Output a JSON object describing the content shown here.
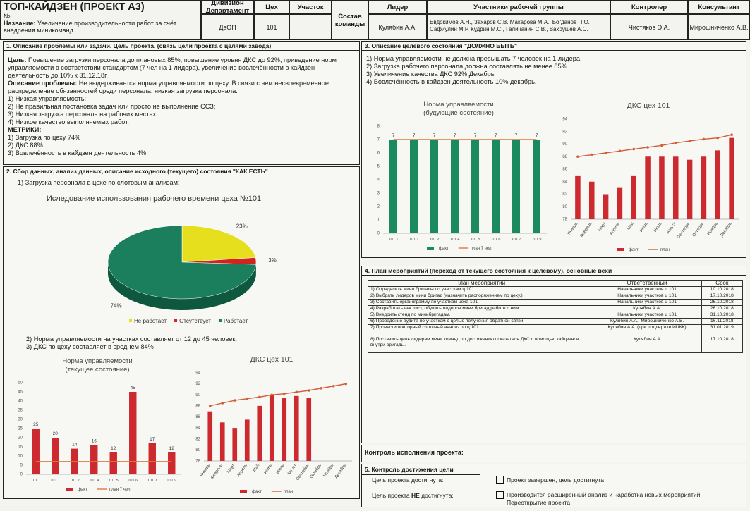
{
  "header": {
    "title": "ТОП-КАЙДЗЕН (ПРОЕКТ А3)",
    "number_label": "№",
    "name_label": "Название:",
    "name": "Увеличение производительности работ за счёт внедрения миникоманд.",
    "division_label": "Дивизион Департамент",
    "division": "ДвОП",
    "shop_label": "Цех",
    "shop": "101",
    "site_label": "Участок",
    "team_label": "Состав команды",
    "leader_label": "Лидер",
    "leader": "Кулябин А.А.",
    "members_label": "Участники рабочей группы",
    "members": [
      "Евдокимов А.Н., Захаров С.В. Макарова М.А., Богданов П.О.",
      "Сафиулин М.Р. Кудрин М.С., Галичанин С.В., Вахрушев А.С."
    ],
    "controller_label": "Контролер",
    "controller": "Чистяков Э.А.",
    "consultant_label": "Консультант",
    "consultant": "Мирошниченко А.В."
  },
  "section1": {
    "title": "1. Описание проблемы или задачи. Цель проекта. (связь цели проекта с целями завода)",
    "goal_label": "Цель:",
    "goal": "Повышение загрузки персонала до плановых 85%, повышение уровня ДКС до 92%, приведение норм управляемости в соответствии стандартом (7 чел на 1 лидера), увеличение вовлечённости в кайдзен деятельность до 10% к 31.12.18г.",
    "problem_label": "Описание проблемы:",
    "problem": "Не выдерживается норма управляемости по цеху. В связи с чем несвоевременное распределение обязанностей среди персонала, низкая загрузка персонала.",
    "items": [
      "1) Низкая управляемость;",
      "2) Не правильная постановка задач или просто не выполнение ССЗ;",
      "3) Низкая загрузка персонала на рабочих местах.",
      "4) Низкое качество выполняемых работ."
    ],
    "metrics_label": "МЕТРИКИ:",
    "metrics": [
      "1) Загрузка по цеху 74%",
      "2) ДКС 88%",
      "3) Вовлечённость в кайдзен деятельность 4%"
    ]
  },
  "section2": {
    "title": "2. Сбор данных, анализ данных, описание исходного (текущего) состояния \"КАК ЕСТЬ\"",
    "item1": "1) Загрузка персонала в цехе по слотовым анализам:",
    "pie": {
      "type": "pie",
      "title": "Иследование использования рабочего времени цеха №101",
      "categories": [
        "Не работает",
        "Отсутствует",
        "Работает"
      ],
      "values": [
        23,
        3,
        74
      ],
      "value_labels": [
        "23%",
        "3%",
        "74%"
      ],
      "colors": [
        "#e6df1e",
        "#d2231f",
        "#1b7f5e"
      ]
    },
    "item2": "2) Норма управляемости на участках составляет от 12 до 45 человек.",
    "item3": "3) ДКС по цеху составляет в среднем 84%",
    "norm_chart": {
      "type": "bar",
      "title": [
        "Норма управляемости",
        "(текущее состояние)"
      ],
      "categories": [
        "101.1",
        "101.1",
        "101.2",
        "101.4",
        "101.5",
        "101.6",
        "101.7",
        "101.9"
      ],
      "series": [
        {
          "name": "факт",
          "color": "#cc2a2f",
          "kind": "bar",
          "values": [
            25,
            20,
            14,
            16,
            12,
            45,
            17,
            12
          ]
        },
        {
          "name": "план 7 чел",
          "color": "#e0793a",
          "kind": "line",
          "values": [
            7,
            7,
            7,
            7,
            7,
            7,
            7,
            7
          ]
        }
      ],
      "data_labels": true,
      "ylim": [
        0,
        50
      ],
      "yticks": [
        0,
        5,
        10,
        15,
        20,
        25,
        30,
        35,
        40,
        45,
        50
      ],
      "grid": false
    },
    "dks_chart": {
      "type": "bar",
      "title": [
        "ДКС цех 101"
      ],
      "categories": [
        "Январь",
        "Февраль",
        "Март",
        "Апрель",
        "Май",
        "Июнь",
        "Июль",
        "Август",
        "Сентябрь",
        "Октябрь",
        "Ноябрь",
        "Декабрь"
      ],
      "rotate_labels": true,
      "series": [
        {
          "name": "факт",
          "color": "#cc2a2f",
          "kind": "bar",
          "values": [
            87,
            85,
            84,
            85.5,
            88,
            90,
            89.5,
            89.8,
            89.5,
            null,
            null,
            null
          ]
        },
        {
          "name": "план",
          "color": "#d0603a",
          "kind": "line",
          "markers": true,
          "values": [
            88,
            88.5,
            89,
            89.3,
            89.6,
            90,
            90.2,
            90.5,
            90.8,
            91.2,
            91.6,
            92
          ]
        }
      ],
      "data_labels": false,
      "ylim": [
        78,
        94
      ],
      "yticks": [
        78,
        80,
        82,
        84,
        86,
        88,
        90,
        92,
        94
      ],
      "grid": false
    }
  },
  "section3": {
    "title": "3. Описание целевого состояния \"ДОЛЖНО БЫТЬ\"",
    "items": [
      "1) Норма управляемости не должна превышать 7 человек на 1 лидера.",
      "2) Загрузка рабочего персонала должна составлять не менее 85%.",
      "3) Увеличение качества ДКС 92% Декабрь",
      "4) Вовлечённость в кайдзен деятельность 10% декабрь."
    ],
    "norm_chart": {
      "type": "bar",
      "title": [
        "Норма управляемости",
        "(будующие состояние)"
      ],
      "categories": [
        "101.1",
        "101.1",
        "101.2",
        "101.4",
        "101.5",
        "101.6",
        "101.7",
        "101.9"
      ],
      "series": [
        {
          "name": "факт",
          "color": "#1b8a5e",
          "kind": "bar",
          "values": [
            7,
            7,
            7,
            7,
            7,
            7,
            7,
            7
          ]
        },
        {
          "name": "план 7 чел",
          "color": "#e0793a",
          "kind": "line",
          "values": [
            7,
            7,
            7,
            7,
            7,
            7,
            7,
            7
          ]
        }
      ],
      "data_labels": true,
      "ylim": [
        0,
        8
      ],
      "yticks": [
        0,
        1,
        2,
        3,
        4,
        5,
        6,
        7,
        8
      ],
      "grid": false
    },
    "dks_chart": {
      "type": "bar",
      "title": [
        "ДКС цех 101"
      ],
      "categories": [
        "Январь",
        "Февраль",
        "Март",
        "Апрель",
        "Май",
        "Июнь",
        "Июль",
        "Август",
        "Сентябрь",
        "Октябрь",
        "Ноябрь",
        "Декабрь"
      ],
      "rotate_labels": true,
      "series": [
        {
          "name": "факт",
          "color": "#cc2a2f",
          "kind": "bar",
          "values": [
            85,
            84,
            82,
            83,
            85,
            88,
            88,
            88,
            87.5,
            88,
            89,
            91
          ]
        },
        {
          "name": "план",
          "color": "#d0603a",
          "kind": "line",
          "markers": true,
          "values": [
            88,
            88.3,
            88.6,
            88.9,
            89.2,
            89.5,
            89.8,
            90.2,
            90.5,
            90.8,
            91,
            91.5
          ]
        }
      ],
      "data_labels": false,
      "ylim": [
        78,
        94
      ],
      "yticks": [
        78,
        80,
        82,
        84,
        86,
        88,
        90,
        92,
        94
      ],
      "grid": false
    }
  },
  "section4": {
    "title": "4. План мероприятий (переход от текущего состояния к целевому), основные вехи",
    "headers": [
      "План мероприятий",
      "Ответственный",
      "Срок"
    ],
    "rows": [
      [
        "1) Определить мини бригады по участкам ц 101",
        "Начальники участков ц 101",
        "10.10.2018"
      ],
      [
        "2) Выбрать лидеров мини бригад (назначить распоряжением по цеху.)",
        "Начальники участков ц 101",
        "17.10.2018"
      ],
      [
        "3) Составить оргаинграмму по участкам цеха 101.",
        "Начальники участков ц 101",
        "26.10.2018"
      ],
      [
        "4) Разработать чек лист, обучить лидеров мини бригад работе с ним.",
        "Кулябин А.А.",
        "26.10.2018"
      ],
      [
        "5) Внедрить стенд по минибригадам.",
        "Начальники участков ц 101",
        "31.10.2018"
      ],
      [
        "6) Проведение аудита по участкам с целью получения обратной связи",
        "Кулябин А.А.. Мирошниченко А.В.",
        "16.11.2018"
      ],
      [
        "7) Провести повторный слотовый анализ по ц 101",
        "Кулябин А.А. (при поддержке ИЦКК)",
        "31.01.2019"
      ],
      [
        "8) Поставить цель лидерам мини команд по достижению показателя ДКС с помощью кайдзенов внутри бригады.",
        "Кулябин А.А",
        "17.10.2018"
      ]
    ]
  },
  "control": {
    "title": "Контроль исполнения проекта:"
  },
  "section5": {
    "title": "5. Контроль достижения цели",
    "achieved_label": "Цель проекта достигнута:",
    "achieved_text": "Проект завершен, цель достигнута",
    "not_achieved_label": [
      "Цель проекта ",
      "НЕ",
      " достигнута:"
    ],
    "not_achieved_text": [
      "Производится расширенный анализ и наработка новых мероприятий.",
      "Переоткрытие проекта"
    ]
  }
}
